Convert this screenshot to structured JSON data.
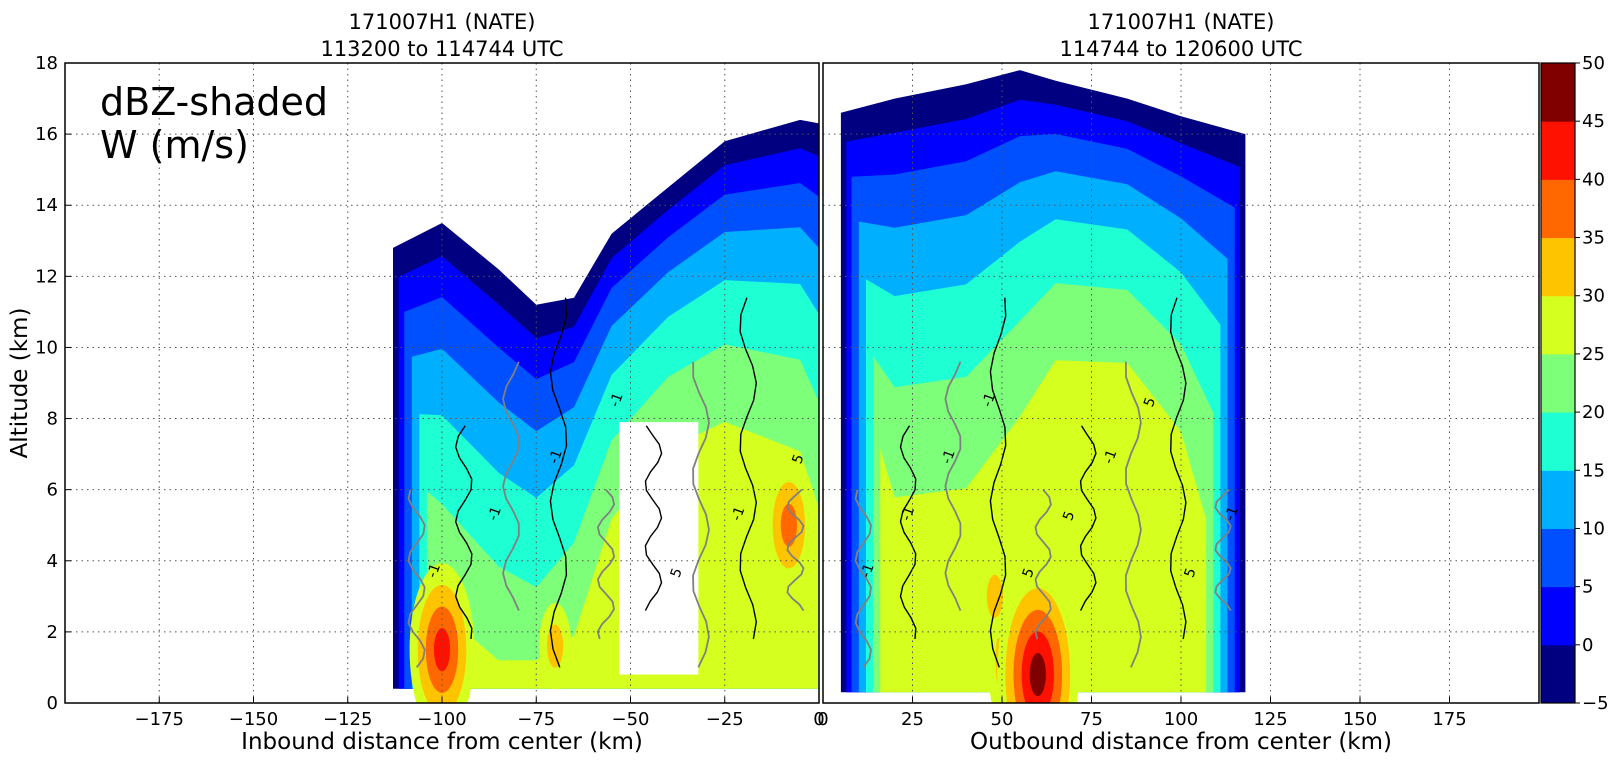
{
  "chart_data": [
    {
      "type": "heatmap",
      "title": "171007H1 (NATE)",
      "subtitle": "113200 to 114744 UTC",
      "annotation": [
        "dBZ-shaded",
        "W (m/s)"
      ],
      "xlabel": "Inbound distance from center (km)",
      "ylabel": "Altitude (km)",
      "xlim": [
        -200,
        0
      ],
      "ylim": [
        0,
        18
      ],
      "xticks": [
        {
          "value": -175,
          "label": "−175"
        },
        {
          "value": -150,
          "label": "−150"
        },
        {
          "value": -125,
          "label": "−125"
        },
        {
          "value": -100,
          "label": "−100"
        },
        {
          "value": -75,
          "label": "−75"
        },
        {
          "value": -50,
          "label": "−50"
        },
        {
          "value": -25,
          "label": "−25"
        },
        {
          "value": 0,
          "label": "0"
        }
      ],
      "yticks": [
        0,
        2,
        4,
        6,
        8,
        10,
        12,
        14,
        16,
        18
      ],
      "grid": true,
      "echo_top_profile": [
        {
          "x": -113,
          "top": 12.8
        },
        {
          "x": -100,
          "top": 13.5
        },
        {
          "x": -85,
          "top": 12.2
        },
        {
          "x": -75,
          "top": 11.2
        },
        {
          "x": -65,
          "top": 11.4
        },
        {
          "x": -55,
          "top": 13.2
        },
        {
          "x": -40,
          "top": 14.5
        },
        {
          "x": -25,
          "top": 15.8
        },
        {
          "x": -5,
          "top": 16.4
        },
        {
          "x": 0,
          "top": 16.3
        }
      ],
      "echo_bottom_km": 0.4,
      "echo_gap": {
        "x": [
          -53,
          -32
        ],
        "y": [
          0.8,
          7.9
        ]
      },
      "cores": [
        {
          "x": -100,
          "y": 1.5,
          "dbz": 40
        },
        {
          "x": -70,
          "y": 1.6,
          "dbz": 32
        },
        {
          "x": -8,
          "y": 5.0,
          "dbz": 35
        }
      ],
      "w_contour_labels": [
        "-1",
        "-1",
        "-1",
        "-1",
        "5",
        "-1",
        "5"
      ]
    },
    {
      "type": "heatmap",
      "title": "171007H1 (NATE)",
      "subtitle": "114744 to 120600 UTC",
      "xlabel": "Outbound distance from center (km)",
      "ylabel": "",
      "xlim": [
        0,
        200
      ],
      "ylim": [
        0,
        18
      ],
      "xticks": [
        {
          "value": 0,
          "label": "0"
        },
        {
          "value": 25,
          "label": "25"
        },
        {
          "value": 50,
          "label": "50"
        },
        {
          "value": 75,
          "label": "75"
        },
        {
          "value": 100,
          "label": "100"
        },
        {
          "value": 125,
          "label": "125"
        },
        {
          "value": 150,
          "label": "150"
        },
        {
          "value": 175,
          "label": "175"
        }
      ],
      "yticks": [
        0,
        2,
        4,
        6,
        8,
        10,
        12,
        14,
        16,
        18
      ],
      "grid": true,
      "echo_top_profile": [
        {
          "x": 5,
          "top": 16.6
        },
        {
          "x": 20,
          "top": 17.0
        },
        {
          "x": 40,
          "top": 17.4
        },
        {
          "x": 55,
          "top": 17.8
        },
        {
          "x": 65,
          "top": 17.5
        },
        {
          "x": 85,
          "top": 17.0
        },
        {
          "x": 100,
          "top": 16.5
        },
        {
          "x": 118,
          "top": 16.0
        }
      ],
      "echo_bottom_km": 0.3,
      "cores": [
        {
          "x": 55,
          "y": 1.2,
          "dbz": 42
        },
        {
          "x": 60,
          "y": 0.8,
          "dbz": 45
        },
        {
          "x": 48,
          "y": 3.0,
          "dbz": 32
        }
      ],
      "w_contour_labels": [
        "-1",
        "-1",
        "-1",
        "-1",
        "5",
        "5",
        "-1",
        "5",
        "5",
        "-1"
      ]
    }
  ],
  "colorbar": {
    "levels": [
      -5,
      0,
      5,
      10,
      15,
      20,
      25,
      30,
      35,
      40,
      45,
      50
    ],
    "labels": [
      "−5",
      "0",
      "5",
      "10",
      "15",
      "20",
      "25",
      "30",
      "35",
      "40",
      "45",
      "50"
    ],
    "colors": [
      "#000080",
      "#0000ff",
      "#0050ff",
      "#00b0ff",
      "#1fffd4",
      "#7dff7a",
      "#d4ff1f",
      "#ffc400",
      "#ff6800",
      "#ff1100",
      "#800000"
    ]
  }
}
